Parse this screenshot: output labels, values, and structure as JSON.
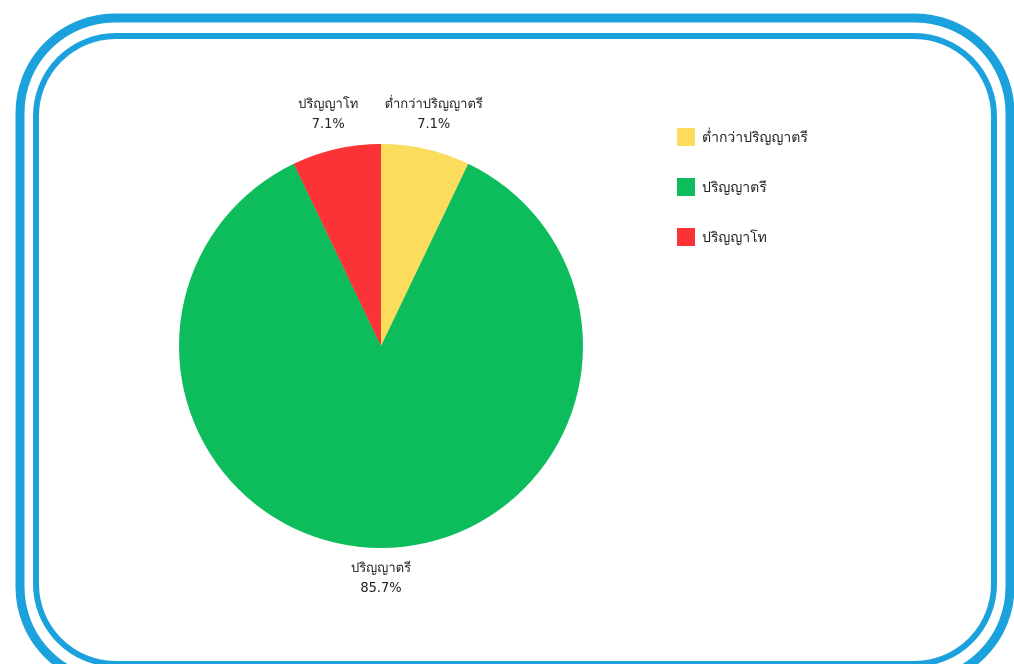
{
  "chart_data": {
    "type": "pie",
    "title": "",
    "slices": [
      {
        "label": "ต่ำกว่าปริญญาตรี",
        "value": 7.1,
        "value_label": "7.1%",
        "color": "#fcdc5c"
      },
      {
        "label": "ปริญญาตรี",
        "value": 85.7,
        "value_label": "85.7%",
        "color": "#0dbd5c"
      },
      {
        "label": "ปริญญาโท",
        "value": 7.1,
        "value_label": "7.1%",
        "color": "#fb3236"
      }
    ],
    "legend_placement": "right",
    "start_angle_deg": 0,
    "direction": "clockwise"
  },
  "frame": {
    "border_color": "#1ba1dc"
  }
}
